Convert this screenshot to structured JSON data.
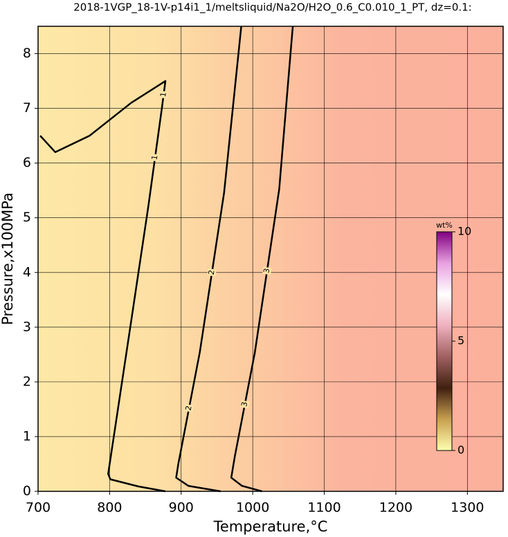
{
  "chart_data": {
    "type": "contour",
    "title": "2018-1VGP_18-1V-p14i1_1/meltsliquid/Na2O/H2O_0.6_C0.010_1_PT, dz=0.1:",
    "x_label": "Temperature,°C",
    "y_label": "Pressure,x100MPa",
    "xlim": [
      700,
      1350
    ],
    "ylim": [
      0,
      8.5
    ],
    "xticks": [
      700,
      800,
      900,
      1000,
      1100,
      1200,
      1300
    ],
    "yticks": [
      0,
      1,
      2,
      3,
      4,
      5,
      6,
      7,
      8
    ],
    "grid": true,
    "series": [
      {
        "level": 1,
        "color": "#000000",
        "x": [
          703,
          724,
          772,
          830,
          878,
          873,
          854,
          830,
          798,
          801,
          840,
          878
        ],
        "y": [
          6.5,
          6.2,
          6.5,
          7.1,
          7.5,
          7.0,
          5.2,
          3.1,
          0.32,
          0.22,
          0.09,
          0
        ]
      },
      {
        "level": 2,
        "color": "#000000",
        "x": [
          984,
          960,
          926,
          896,
          893,
          910,
          955
        ],
        "y": [
          8.5,
          5.46,
          2.54,
          0.5,
          0.25,
          0.1,
          0
        ]
      },
      {
        "level": 3,
        "color": "#000000",
        "x": [
          1056,
          1037,
          1003,
          975,
          970,
          985,
          1013
        ],
        "y": [
          8.5,
          5.52,
          2.54,
          0.64,
          0.25,
          0.1,
          0
        ]
      }
    ],
    "colorbar": {
      "label": "wt%",
      "lim": [
        0,
        10
      ],
      "ticks": [
        0,
        5,
        10
      ],
      "colormap": [
        "#ffffb0",
        "#c8a050",
        "#402010",
        "#a06060",
        "#f0b0c0",
        "#ffffff",
        "#e8a0e0",
        "#800080"
      ]
    }
  }
}
